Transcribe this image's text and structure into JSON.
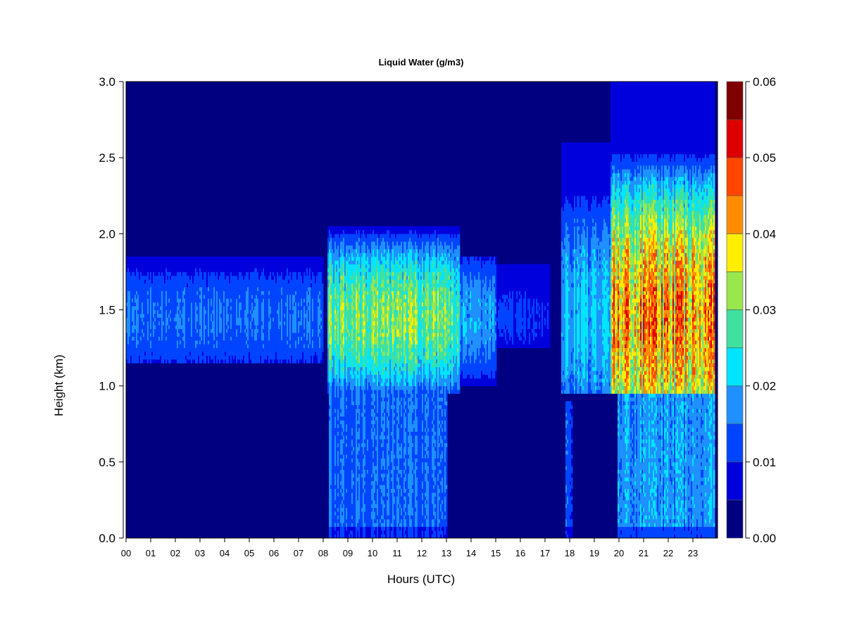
{
  "chart_data": {
    "type": "heatmap",
    "title": "Liquid Water (g/m3)",
    "xlabel": "Hours (UTC)",
    "ylabel": "Height (km)",
    "xlim": [
      0,
      24
    ],
    "ylim": [
      0,
      3
    ],
    "x_tick_labels": [
      "00",
      "01",
      "02",
      "03",
      "04",
      "05",
      "06",
      "07",
      "08",
      "09",
      "10",
      "11",
      "12",
      "13",
      "14",
      "15",
      "16",
      "17",
      "18",
      "19",
      "20",
      "21",
      "22",
      "23"
    ],
    "y_tick_labels": [
      "0.0",
      "0.5",
      "1.0",
      "1.5",
      "2.0",
      "2.5",
      "3.0"
    ],
    "y_tick_values": [
      0,
      0.5,
      1.0,
      1.5,
      2.0,
      2.5,
      3.0
    ],
    "colorbar": {
      "range": [
        0,
        0.06
      ],
      "tick_labels": [
        "0.00",
        "0.01",
        "0.02",
        "0.03",
        "0.04",
        "0.05",
        "0.06"
      ],
      "tick_values": [
        0,
        0.01,
        0.02,
        0.03,
        0.04,
        0.05,
        0.06
      ],
      "levels": [
        0,
        0.005,
        0.01,
        0.015,
        0.02,
        0.025,
        0.03,
        0.035,
        0.04,
        0.045,
        0.05,
        0.055,
        0.06
      ],
      "colors": [
        "#000080",
        "#0000DD",
        "#0044FF",
        "#1E90FF",
        "#00E5FF",
        "#40E0A0",
        "#99E64D",
        "#FFEE00",
        "#FF8C00",
        "#FF4500",
        "#DD0000",
        "#800000"
      ]
    },
    "grid": false,
    "cloud_layers": [
      {
        "t_start": 0.0,
        "t_end": 8.0,
        "base_km": 1.15,
        "top_km": 1.85,
        "peak_g_m3": 0.018
      },
      {
        "t_start": 8.15,
        "t_end": 13.5,
        "base_km": 0.95,
        "top_km": 2.05,
        "peak_g_m3": 0.038
      },
      {
        "t_start": 13.5,
        "t_end": 15.0,
        "base_km": 1.0,
        "top_km": 1.85,
        "peak_g_m3": 0.022
      },
      {
        "t_start": 15.0,
        "t_end": 17.2,
        "base_km": 1.25,
        "top_km": 1.8,
        "peak_g_m3": 0.012
      },
      {
        "t_start": 17.6,
        "t_end": 19.6,
        "base_km": 0.95,
        "top_km": 2.6,
        "peak_g_m3": 0.025
      },
      {
        "t_start": 19.6,
        "t_end": 23.85,
        "base_km": 0.95,
        "top_km": 3.0,
        "peak_g_m3": 0.052
      }
    ],
    "drizzle_below_cloud": [
      {
        "t_start": 8.2,
        "t_end": 13.0,
        "top_km": 0.95,
        "level_g_m3": 0.014
      },
      {
        "t_start": 17.8,
        "t_end": 18.1,
        "top_km": 0.9,
        "level_g_m3": 0.012
      },
      {
        "t_start": 19.9,
        "t_end": 23.85,
        "top_km": 0.95,
        "level_g_m3": 0.017
      }
    ]
  }
}
